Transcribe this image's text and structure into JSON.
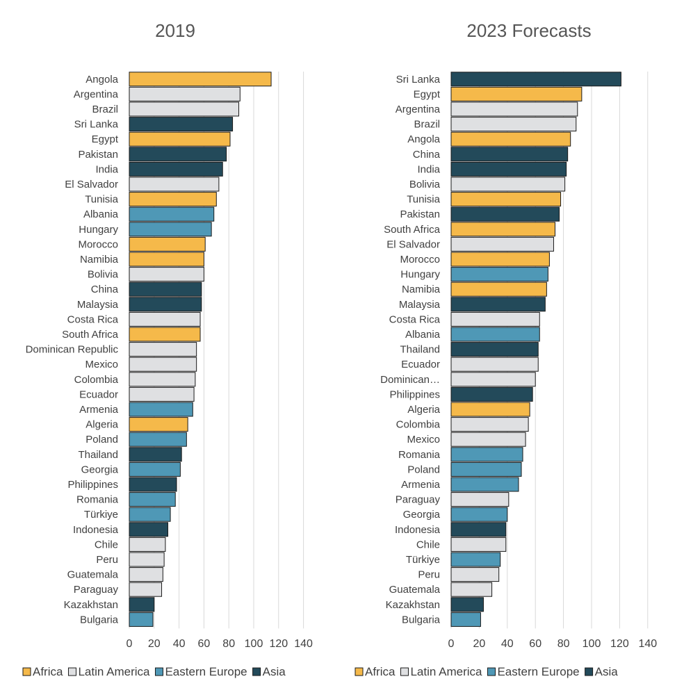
{
  "colors": {
    "Africa": "#f5b94a",
    "Latin America": "#dfe0e2",
    "Eastern Europe": "#4f98b6",
    "Asia": "#234a5a"
  },
  "chart_data": [
    {
      "type": "bar",
      "orientation": "horizontal",
      "title": "2019",
      "xlim": [
        0,
        140
      ],
      "xticks": [
        "0",
        "20",
        "40",
        "60",
        "80",
        "100",
        "120",
        "140"
      ],
      "grid": true,
      "legend_position": "bottom",
      "legend": [
        "Africa",
        "Latin America",
        "Eastern Europe",
        "Asia"
      ],
      "categories": [
        "Angola",
        "Argentina",
        "Brazil",
        "Sri Lanka",
        "Egypt",
        "Pakistan",
        "India",
        "El Salvador",
        "Tunisia",
        "Albania",
        "Hungary",
        "Morocco",
        "Namibia",
        "Bolivia",
        "China",
        "Malaysia",
        "Costa Rica",
        "South Africa",
        "Dominican Republic",
        "Mexico",
        "Colombia",
        "Ecuador",
        "Armenia",
        "Algeria",
        "Poland",
        "Thailand",
        "Georgia",
        "Philippines",
        "Romania",
        "Türkiye",
        "Indonesia",
        "Chile",
        "Peru",
        "Guatemala",
        "Paraguay",
        "Kazakhstan",
        "Bulgaria"
      ],
      "values": [
        114,
        89,
        88,
        83,
        81,
        78,
        75,
        72,
        70,
        68,
        66,
        61,
        60,
        60,
        58,
        58,
        57,
        57,
        54,
        54,
        53,
        52,
        51,
        47,
        46,
        42,
        41,
        38,
        37,
        33,
        31,
        29,
        28,
        27,
        26,
        20,
        19
      ],
      "regions": [
        "Africa",
        "Latin America",
        "Latin America",
        "Asia",
        "Africa",
        "Asia",
        "Asia",
        "Latin America",
        "Africa",
        "Eastern Europe",
        "Eastern Europe",
        "Africa",
        "Africa",
        "Latin America",
        "Asia",
        "Asia",
        "Latin America",
        "Africa",
        "Latin America",
        "Latin America",
        "Latin America",
        "Latin America",
        "Eastern Europe",
        "Africa",
        "Eastern Europe",
        "Asia",
        "Eastern Europe",
        "Asia",
        "Eastern Europe",
        "Eastern Europe",
        "Asia",
        "Latin America",
        "Latin America",
        "Latin America",
        "Latin America",
        "Asia",
        "Eastern Europe"
      ]
    },
    {
      "type": "bar",
      "orientation": "horizontal",
      "title": "2023 Forecasts",
      "xlim": [
        0,
        140
      ],
      "xticks": [
        "0",
        "20",
        "40",
        "60",
        "80",
        "100",
        "120",
        "140"
      ],
      "grid": true,
      "legend_position": "bottom",
      "legend": [
        "Africa",
        "Latin America",
        "Eastern Europe",
        "Asia"
      ],
      "categories": [
        "Sri Lanka",
        "Egypt",
        "Argentina",
        "Brazil",
        "Angola",
        "China",
        "India",
        "Bolivia",
        "Tunisia",
        "Pakistan",
        "South Africa",
        "El Salvador",
        "Morocco",
        "Hungary",
        "Namibia",
        "Malaysia",
        "Costa Rica",
        "Albania",
        "Thailand",
        "Ecuador",
        "Dominican…",
        "Philippines",
        "Algeria",
        "Colombia",
        "Mexico",
        "Romania",
        "Poland",
        "Armenia",
        "Paraguay",
        "Georgia",
        "Indonesia",
        "Chile",
        "Türkiye",
        "Peru",
        "Guatemala",
        "Kazakhstan",
        "Bulgaria"
      ],
      "values": [
        121,
        93,
        90,
        89,
        85,
        83,
        82,
        81,
        78,
        77,
        74,
        73,
        70,
        69,
        68,
        67,
        63,
        63,
        62,
        62,
        60,
        58,
        56,
        55,
        53,
        51,
        50,
        48,
        41,
        40,
        39,
        39,
        35,
        34,
        29,
        23,
        21
      ],
      "regions": [
        "Asia",
        "Africa",
        "Latin America",
        "Latin America",
        "Africa",
        "Asia",
        "Asia",
        "Latin America",
        "Africa",
        "Asia",
        "Africa",
        "Latin America",
        "Africa",
        "Eastern Europe",
        "Africa",
        "Asia",
        "Latin America",
        "Eastern Europe",
        "Asia",
        "Latin America",
        "Latin America",
        "Asia",
        "Africa",
        "Latin America",
        "Latin America",
        "Eastern Europe",
        "Eastern Europe",
        "Eastern Europe",
        "Latin America",
        "Eastern Europe",
        "Asia",
        "Latin America",
        "Eastern Europe",
        "Latin America",
        "Latin America",
        "Asia",
        "Eastern Europe"
      ]
    }
  ]
}
